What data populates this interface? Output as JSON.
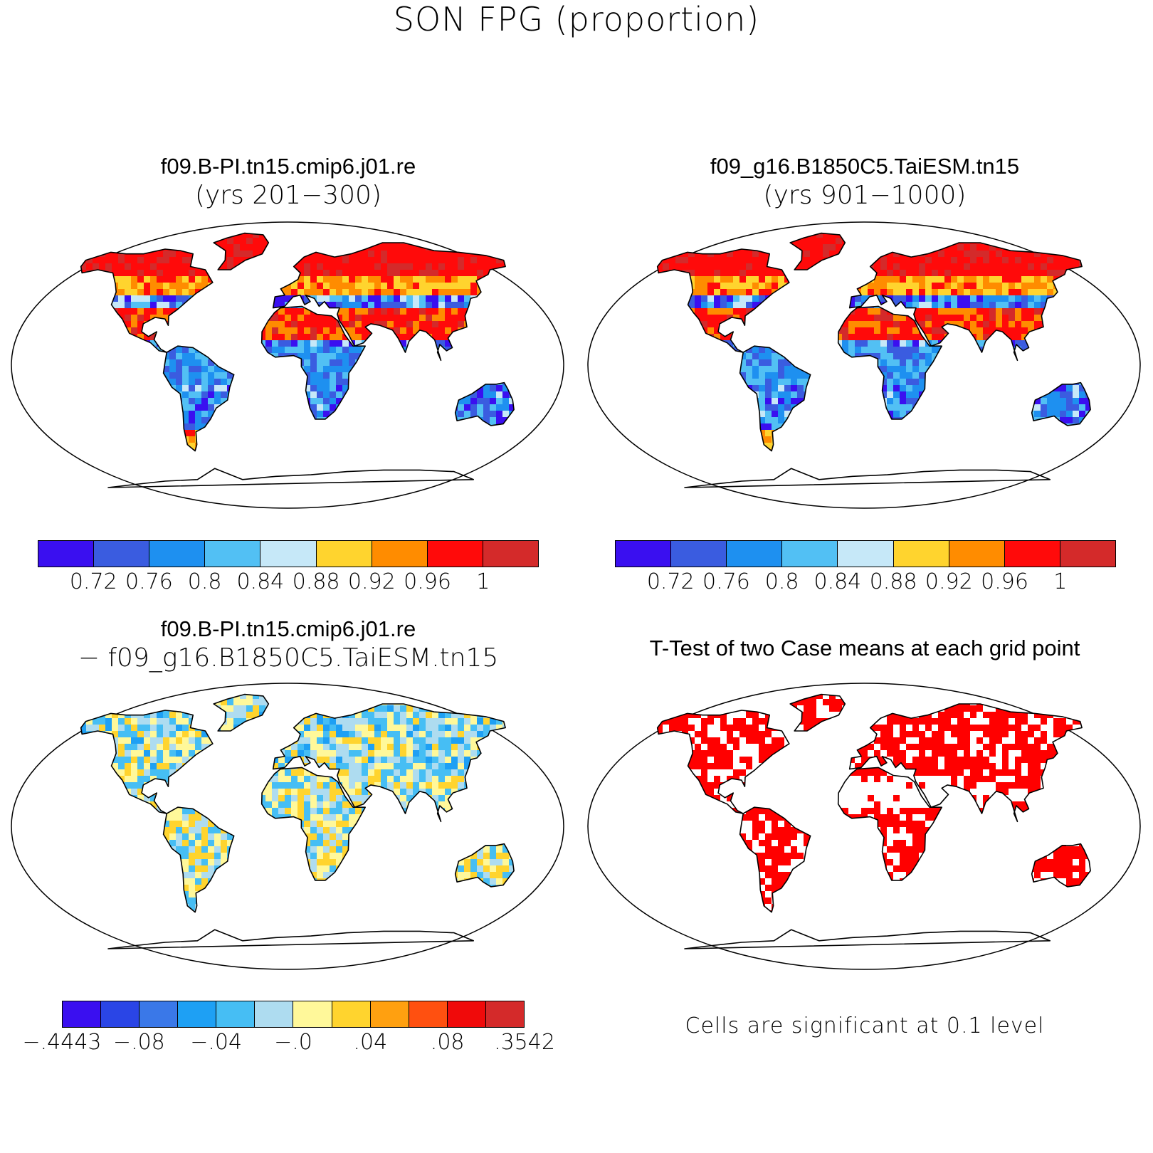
{
  "title": "SON FPG (proportion)",
  "panels": [
    {
      "id": "case1",
      "title": "f09.B-PI.tn15.cmip6.j01.re",
      "subtitle": "(yrs 201−300)",
      "colors": [
        "#3a0ff0",
        "#3a5ce0",
        "#1e90f0",
        "#52c0f4",
        "#c6e8f8",
        "#ffd42e",
        "#ff8c00",
        "#ff0a0a",
        "#d42a2a"
      ],
      "ticks": [
        "0.72",
        "0.76",
        "0.8",
        "0.84",
        "0.88",
        "0.92",
        "0.96",
        "1"
      ]
    },
    {
      "id": "case2",
      "title": "f09_g16.B1850C5.TaiESM.tn15",
      "subtitle": "(yrs 901−1000)",
      "colors": [
        "#3a0ff0",
        "#3a5ce0",
        "#1e90f0",
        "#52c0f4",
        "#c6e8f8",
        "#ffd42e",
        "#ff8c00",
        "#ff0a0a",
        "#d42a2a"
      ],
      "ticks": [
        "0.72",
        "0.76",
        "0.8",
        "0.84",
        "0.88",
        "0.92",
        "0.96",
        "1"
      ]
    },
    {
      "id": "diff",
      "title": "f09.B-PI.tn15.cmip6.j01.re",
      "subtitle": "− f09_g16.B1850C5.TaiESM.tn15",
      "colors": [
        "#3a0ff0",
        "#2a45e6",
        "#3a78e8",
        "#1ea0f4",
        "#46bef4",
        "#aedcf0",
        "#fff89a",
        "#ffd42e",
        "#ffa010",
        "#ff5010",
        "#f00a0a",
        "#d42a2a"
      ],
      "ticks": [
        "−.4443",
        "−.08",
        "−.04",
        "−.0",
        ".04",
        ".08",
        ".3542"
      ]
    },
    {
      "id": "ttest",
      "title": "T-Test of two Case means at each grid point",
      "note": "Cells are significant at 0.1 level",
      "sig_color": "#ff0000"
    }
  ]
}
